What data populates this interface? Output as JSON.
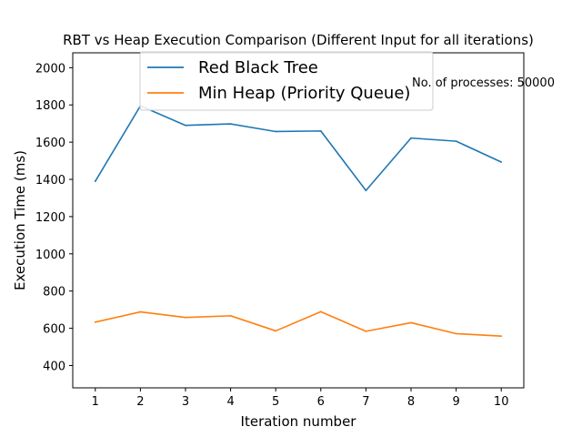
{
  "chart_data": {
    "type": "line",
    "title": "RBT vs Heap Execution Comparison (Different Input for all iterations)",
    "xlabel": "Iteration number",
    "ylabel": "Execution Time (ms)",
    "x": [
      1,
      2,
      3,
      4,
      5,
      6,
      7,
      8,
      9,
      10
    ],
    "xlim": [
      0.5,
      10.5
    ],
    "ylim": [
      280,
      2080
    ],
    "yticks": [
      400,
      600,
      800,
      1000,
      1200,
      1400,
      1600,
      1800,
      2000
    ],
    "grid": false,
    "legend_position": "upper-center",
    "annotation": "No. of processes: 50000",
    "series": [
      {
        "name": "Red Black Tree",
        "color": "#1f77b4",
        "values": [
          1390,
          1795,
          1690,
          1698,
          1657,
          1660,
          1340,
          1622,
          1605,
          1493
        ]
      },
      {
        "name": "Min Heap (Priority Queue)",
        "color": "#ff7f0e",
        "values": [
          633,
          688,
          658,
          667,
          586,
          689,
          584,
          630,
          571,
          558
        ]
      }
    ]
  }
}
